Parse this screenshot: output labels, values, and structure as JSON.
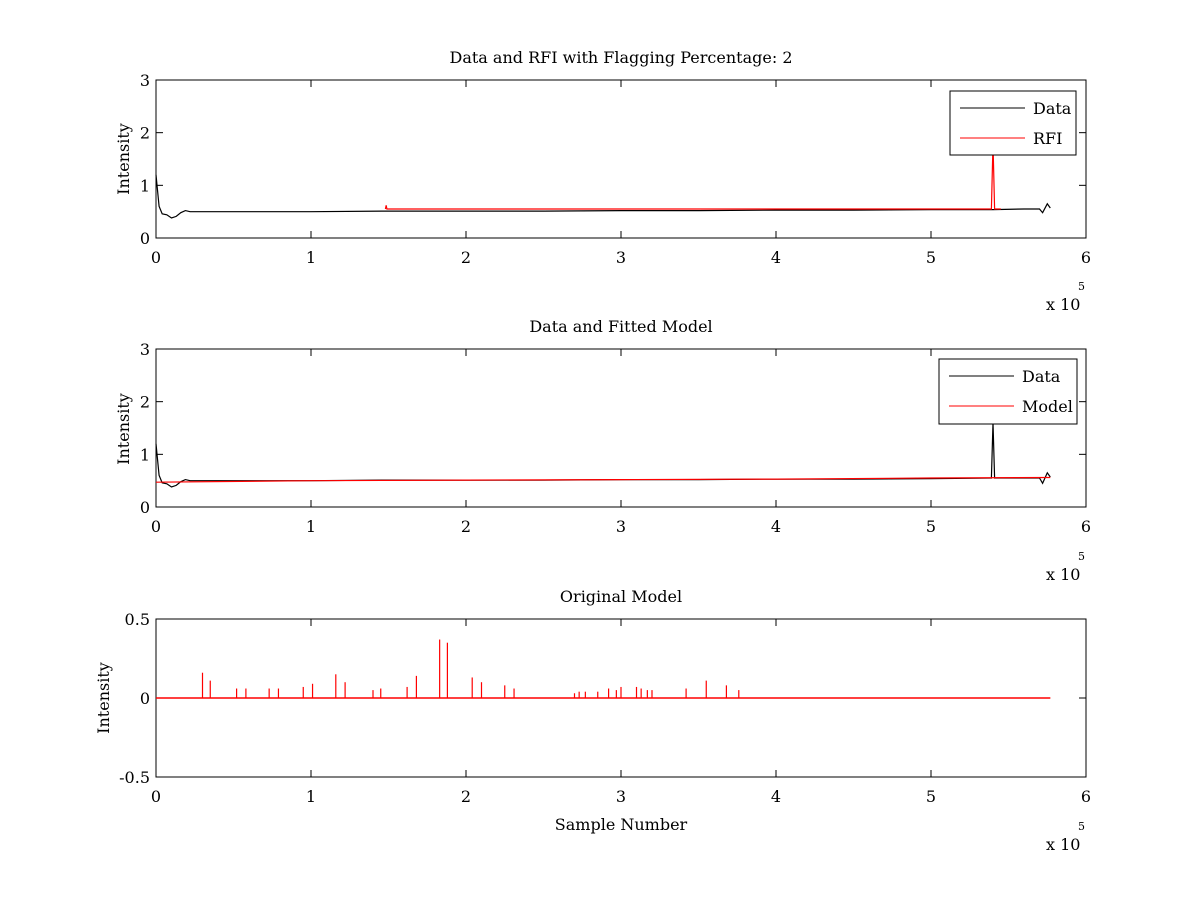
{
  "chart_data": [
    {
      "type": "line",
      "title": "Data and RFI with Flagging Percentage: 2",
      "ylabel": "Intensity",
      "xlabel": "",
      "xlim": [
        0,
        6
      ],
      "ylim": [
        0,
        3
      ],
      "xticks": [
        "0",
        "1",
        "2",
        "3",
        "4",
        "5",
        "6"
      ],
      "yticks": [
        "0",
        "1",
        "2",
        "3"
      ],
      "x_exponent": {
        "prefix": "x 10",
        "power": "5"
      },
      "grid": false,
      "legend": {
        "placement": "top-right",
        "entries": [
          {
            "name": "Data",
            "color": "#000000"
          },
          {
            "name": "RFI",
            "color": "#ff0000"
          }
        ]
      },
      "series": [
        {
          "name": "Data",
          "color": "#000000",
          "x": [
            0,
            0.02,
            0.04,
            0.07,
            0.1,
            0.13,
            0.16,
            0.19,
            0.22,
            0.3,
            0.6,
            1.0,
            1.5,
            2.0,
            2.5,
            3.0,
            3.5,
            4.0,
            4.5,
            5.0,
            5.4,
            5.6,
            5.7,
            5.72,
            5.75,
            5.77
          ],
          "y": [
            1.2,
            0.6,
            0.46,
            0.44,
            0.38,
            0.41,
            0.48,
            0.52,
            0.5,
            0.5,
            0.5,
            0.5,
            0.51,
            0.51,
            0.51,
            0.52,
            0.52,
            0.53,
            0.53,
            0.54,
            0.54,
            0.55,
            0.55,
            0.48,
            0.65,
            0.57
          ]
        },
        {
          "name": "RFI",
          "color": "#ff0000",
          "x": [
            1.48,
            1.485,
            1.49,
            5.35,
            5.38,
            5.39,
            5.4,
            5.41,
            5.42,
            5.45
          ],
          "y": [
            0.55,
            0.62,
            0.55,
            0.55,
            0.55,
            0.55,
            1.8,
            0.55,
            0.55,
            0.55
          ]
        }
      ]
    },
    {
      "type": "line",
      "title": "Data and Fitted Model",
      "ylabel": "Intensity",
      "xlabel": "",
      "xlim": [
        0,
        6
      ],
      "ylim": [
        0,
        3
      ],
      "xticks": [
        "0",
        "1",
        "2",
        "3",
        "4",
        "5",
        "6"
      ],
      "yticks": [
        "0",
        "1",
        "2",
        "3"
      ],
      "x_exponent": {
        "prefix": "x 10",
        "power": "5"
      },
      "grid": false,
      "legend": {
        "placement": "top-right",
        "entries": [
          {
            "name": "Data",
            "color": "#000000"
          },
          {
            "name": "Model",
            "color": "#ff0000"
          }
        ]
      },
      "series": [
        {
          "name": "Data",
          "color": "#000000",
          "x": [
            0,
            0.02,
            0.04,
            0.07,
            0.1,
            0.13,
            0.16,
            0.19,
            0.22,
            0.3,
            0.6,
            1.0,
            1.5,
            2.0,
            2.5,
            3.0,
            3.5,
            4.0,
            4.5,
            5.0,
            5.39,
            5.4,
            5.41,
            5.6,
            5.7,
            5.72,
            5.75,
            5.77
          ],
          "y": [
            1.2,
            0.6,
            0.46,
            0.44,
            0.38,
            0.41,
            0.48,
            0.52,
            0.5,
            0.5,
            0.5,
            0.5,
            0.51,
            0.51,
            0.51,
            0.52,
            0.52,
            0.53,
            0.53,
            0.54,
            0.55,
            1.6,
            0.55,
            0.55,
            0.55,
            0.45,
            0.65,
            0.57
          ]
        },
        {
          "name": "Model",
          "color": "#ff0000",
          "x": [
            0,
            1,
            2,
            3,
            4,
            5,
            5.77
          ],
          "y": [
            0.47,
            0.5,
            0.51,
            0.52,
            0.53,
            0.55,
            0.56
          ]
        }
      ]
    },
    {
      "type": "line",
      "title": "Original Model",
      "ylabel": "Intensity",
      "xlabel": "Sample Number",
      "xlim": [
        0,
        6
      ],
      "ylim": [
        -0.5,
        0.5
      ],
      "xticks": [
        "0",
        "1",
        "2",
        "3",
        "4",
        "5",
        "6"
      ],
      "yticks": [
        "-0.5",
        "0",
        "0.5"
      ],
      "x_exponent": {
        "prefix": "x 10",
        "power": "5"
      },
      "grid": false,
      "series": [
        {
          "name": "",
          "color": "#ff0000",
          "baseline": 0.0,
          "x_end": 5.77,
          "spikes": [
            [
              0.3,
              0.16
            ],
            [
              0.35,
              0.11
            ],
            [
              0.52,
              0.06
            ],
            [
              0.58,
              0.06
            ],
            [
              0.73,
              0.06
            ],
            [
              0.79,
              0.06
            ],
            [
              0.95,
              0.07
            ],
            [
              1.01,
              0.09
            ],
            [
              1.16,
              0.15
            ],
            [
              1.22,
              0.1
            ],
            [
              1.4,
              0.05
            ],
            [
              1.45,
              0.06
            ],
            [
              1.62,
              0.07
            ],
            [
              1.68,
              0.14
            ],
            [
              1.83,
              0.37
            ],
            [
              1.88,
              0.35
            ],
            [
              2.04,
              0.13
            ],
            [
              2.1,
              0.1
            ],
            [
              2.25,
              0.08
            ],
            [
              2.31,
              0.06
            ],
            [
              2.7,
              0.03
            ],
            [
              2.73,
              0.04
            ],
            [
              2.77,
              0.04
            ],
            [
              2.85,
              0.04
            ],
            [
              2.92,
              0.06
            ],
            [
              2.97,
              0.05
            ],
            [
              3.0,
              0.07
            ],
            [
              3.1,
              0.07
            ],
            [
              3.13,
              0.06
            ],
            [
              3.17,
              0.05
            ],
            [
              3.2,
              0.05
            ],
            [
              3.42,
              0.06
            ],
            [
              3.55,
              0.11
            ],
            [
              3.68,
              0.08
            ],
            [
              3.76,
              0.05
            ]
          ]
        }
      ]
    }
  ]
}
